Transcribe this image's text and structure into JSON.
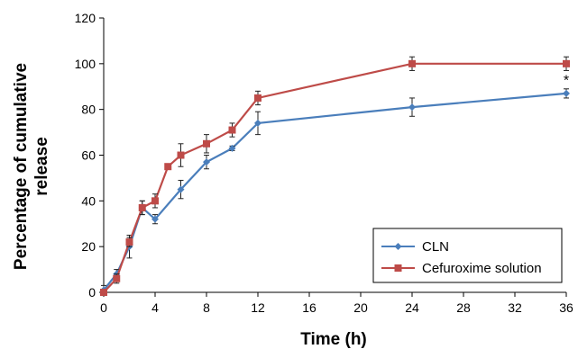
{
  "chart_data": {
    "type": "line",
    "title": "",
    "xlabel": "Time (h)",
    "ylabel_lines": [
      "Percentage of cumulative",
      "release"
    ],
    "xlim": [
      0,
      36
    ],
    "ylim": [
      0,
      120
    ],
    "xticks": [
      0,
      4,
      8,
      12,
      16,
      20,
      24,
      28,
      32,
      36
    ],
    "yticks": [
      0,
      20,
      40,
      60,
      80,
      100,
      120
    ],
    "grid": false,
    "legend_position": "bottom-right",
    "annotation": {
      "text": "*",
      "x": 36,
      "y": 93
    },
    "series": [
      {
        "name": "CLN",
        "color": "#4A7EBB",
        "marker": "diamond",
        "x": [
          0,
          1,
          2,
          3,
          4,
          6,
          8,
          10,
          12,
          24,
          36
        ],
        "y": [
          1,
          8,
          20,
          37,
          32,
          45,
          57,
          63,
          74,
          81,
          87
        ],
        "err": [
          2,
          2,
          5,
          3,
          2,
          4,
          3,
          1,
          5,
          4,
          2
        ]
      },
      {
        "name": "Cefuroxime solution",
        "color": "#BE4B48",
        "marker": "square",
        "x": [
          0,
          1,
          2,
          3,
          4,
          5,
          6,
          8,
          10,
          12,
          24,
          36
        ],
        "y": [
          0,
          6,
          22,
          37,
          40,
          55,
          60,
          65,
          71,
          85,
          100,
          100
        ],
        "err": [
          1,
          2,
          2,
          3,
          3,
          1,
          5,
          4,
          3,
          3,
          3,
          3
        ]
      }
    ]
  }
}
